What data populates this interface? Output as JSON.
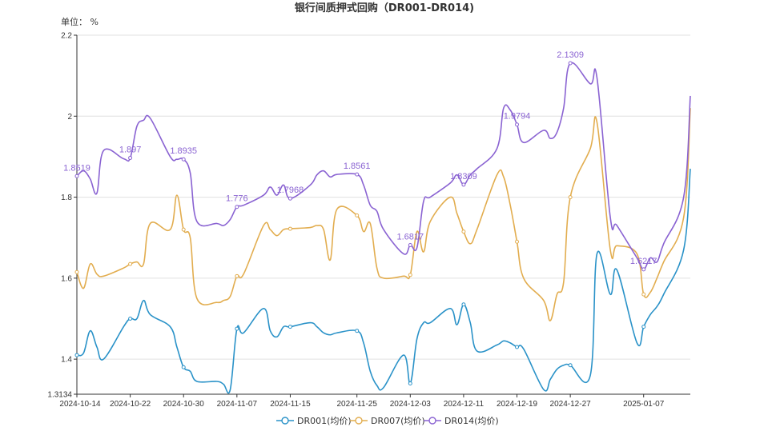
{
  "chart_data": {
    "type": "line",
    "title": "银行间质押式回购（DR001-DR014)",
    "unit_label": "单位： %",
    "ylim": [
      1.3134,
      2.2
    ],
    "y_ticks": [
      "2.2",
      "2",
      "1.8",
      "1.6",
      "1.4",
      "1.3134"
    ],
    "y_tick_values": [
      2.2,
      2.0,
      1.8,
      1.6,
      1.4,
      1.3134
    ],
    "xlim": [
      "2024-10-14",
      "2025-01-14"
    ],
    "x_ticks": [
      "2024-10-14",
      "2024-10-22",
      "2024-10-30",
      "2024-11-07",
      "2024-11-15",
      "2024-11-25",
      "2024-12-03",
      "2024-12-11",
      "2024-12-19",
      "2024-12-27",
      "2025-01-07"
    ],
    "x_tick_dates": [
      "2024-10-14",
      "2024-10-22",
      "2024-10-30",
      "2024-11-07",
      "2024-11-15",
      "2024-11-25",
      "2024-12-03",
      "2024-12-11",
      "2024-12-19",
      "2024-12-27",
      "2025-01-07"
    ],
    "grid": true,
    "legend_position": "bottom",
    "colors": {
      "DR001": "#2a92c8",
      "DR007": "#e2ad4f",
      "DR014": "#8a63d2"
    },
    "series": [
      {
        "name": "DR001(均价)",
        "key": "DR001",
        "x": [
          "2024-10-14",
          "2024-10-15",
          "2024-10-16",
          "2024-10-17",
          "2024-10-18",
          "2024-10-21",
          "2024-10-22",
          "2024-10-23",
          "2024-10-24",
          "2024-10-25",
          "2024-10-28",
          "2024-10-29",
          "2024-10-30",
          "2024-10-31",
          "2024-11-01",
          "2024-11-04",
          "2024-11-05",
          "2024-11-06",
          "2024-11-07",
          "2024-11-08",
          "2024-11-11",
          "2024-11-12",
          "2024-11-13",
          "2024-11-14",
          "2024-11-15",
          "2024-11-18",
          "2024-11-19",
          "2024-11-20",
          "2024-11-21",
          "2024-11-22",
          "2024-11-25",
          "2024-11-26",
          "2024-11-27",
          "2024-11-28",
          "2024-11-29",
          "2024-12-02",
          "2024-12-03",
          "2024-12-04",
          "2024-12-05",
          "2024-12-06",
          "2024-12-09",
          "2024-12-10",
          "2024-12-11",
          "2024-12-12",
          "2024-12-13",
          "2024-12-16",
          "2024-12-17",
          "2024-12-18",
          "2024-12-19",
          "2024-12-20",
          "2024-12-23",
          "2024-12-24",
          "2024-12-25",
          "2024-12-26",
          "2024-12-27",
          "2024-12-30",
          "2024-12-31",
          "2025-01-02",
          "2025-01-03",
          "2025-01-06",
          "2025-01-07",
          "2025-01-08",
          "2025-01-09",
          "2025-01-10",
          "2025-01-13",
          "2025-01-14"
        ],
        "values": [
          1.41,
          1.415,
          1.47,
          1.43,
          1.4,
          1.48,
          1.5,
          1.5,
          1.545,
          1.51,
          1.48,
          1.43,
          1.38,
          1.37,
          1.345,
          1.345,
          1.338,
          1.325,
          1.475,
          1.465,
          1.525,
          1.47,
          1.455,
          1.48,
          1.48,
          1.49,
          1.48,
          1.465,
          1.46,
          1.465,
          1.47,
          1.44,
          1.37,
          1.335,
          1.33,
          1.41,
          1.34,
          1.45,
          1.49,
          1.49,
          1.525,
          1.485,
          1.535,
          1.49,
          1.42,
          1.435,
          1.445,
          1.44,
          1.43,
          1.425,
          1.325,
          1.35,
          1.375,
          1.385,
          1.385,
          1.36,
          1.66,
          1.56,
          1.62,
          1.44,
          1.48,
          1.51,
          1.53,
          1.56,
          1.67,
          1.87
        ]
      },
      {
        "name": "DR007(均价)",
        "key": "DR007",
        "x": [
          "2024-10-14",
          "2024-10-15",
          "2024-10-16",
          "2024-10-17",
          "2024-10-18",
          "2024-10-21",
          "2024-10-22",
          "2024-10-23",
          "2024-10-24",
          "2024-10-25",
          "2024-10-28",
          "2024-10-29",
          "2024-10-30",
          "2024-10-31",
          "2024-11-01",
          "2024-11-04",
          "2024-11-05",
          "2024-11-06",
          "2024-11-07",
          "2024-11-08",
          "2024-11-11",
          "2024-11-12",
          "2024-11-13",
          "2024-11-14",
          "2024-11-15",
          "2024-11-18",
          "2024-11-19",
          "2024-11-20",
          "2024-11-21",
          "2024-11-22",
          "2024-11-25",
          "2024-11-26",
          "2024-11-27",
          "2024-11-28",
          "2024-11-29",
          "2024-12-02",
          "2024-12-03",
          "2024-12-04",
          "2024-12-05",
          "2024-12-06",
          "2024-12-09",
          "2024-12-10",
          "2024-12-11",
          "2024-12-12",
          "2024-12-13",
          "2024-12-16",
          "2024-12-17",
          "2024-12-18",
          "2024-12-19",
          "2024-12-20",
          "2024-12-23",
          "2024-12-24",
          "2024-12-25",
          "2024-12-26",
          "2024-12-27",
          "2024-12-30",
          "2024-12-31",
          "2025-01-02",
          "2025-01-03",
          "2025-01-06",
          "2025-01-07",
          "2025-01-08",
          "2025-01-09",
          "2025-01-10",
          "2025-01-13",
          "2025-01-14"
        ],
        "values": [
          1.615,
          1.575,
          1.635,
          1.61,
          1.605,
          1.625,
          1.635,
          1.64,
          1.635,
          1.735,
          1.72,
          1.805,
          1.72,
          1.7,
          1.55,
          1.54,
          1.545,
          1.555,
          1.605,
          1.61,
          1.73,
          1.72,
          1.705,
          1.72,
          1.722,
          1.725,
          1.73,
          1.72,
          1.645,
          1.77,
          1.755,
          1.715,
          1.735,
          1.625,
          1.6,
          1.605,
          1.608,
          1.715,
          1.665,
          1.74,
          1.8,
          1.76,
          1.715,
          1.685,
          1.72,
          1.855,
          1.85,
          1.78,
          1.69,
          1.6,
          1.545,
          1.495,
          1.56,
          1.59,
          1.8,
          1.92,
          1.985,
          1.67,
          1.68,
          1.66,
          1.56,
          1.565,
          1.6,
          1.64,
          1.75,
          2.02
        ]
      },
      {
        "name": "DR014(均价)",
        "key": "DR014",
        "x": [
          "2024-10-14",
          "2024-10-15",
          "2024-10-16",
          "2024-10-17",
          "2024-10-18",
          "2024-10-21",
          "2024-10-22",
          "2024-10-23",
          "2024-10-24",
          "2024-10-25",
          "2024-10-28",
          "2024-10-29",
          "2024-10-30",
          "2024-10-31",
          "2024-11-01",
          "2024-11-04",
          "2024-11-05",
          "2024-11-06",
          "2024-11-07",
          "2024-11-08",
          "2024-11-11",
          "2024-11-12",
          "2024-11-13",
          "2024-11-14",
          "2024-11-15",
          "2024-11-18",
          "2024-11-19",
          "2024-11-20",
          "2024-11-21",
          "2024-11-22",
          "2024-11-25",
          "2024-11-26",
          "2024-11-27",
          "2024-11-28",
          "2024-11-29",
          "2024-12-02",
          "2024-12-03",
          "2024-12-04",
          "2024-12-05",
          "2024-12-06",
          "2024-12-09",
          "2024-12-10",
          "2024-12-11",
          "2024-12-12",
          "2024-12-13",
          "2024-12-16",
          "2024-12-17",
          "2024-12-18",
          "2024-12-19",
          "2024-12-20",
          "2024-12-23",
          "2024-12-24",
          "2024-12-25",
          "2024-12-26",
          "2024-12-27",
          "2024-12-30",
          "2024-12-31",
          "2025-01-02",
          "2025-01-03",
          "2025-01-06",
          "2025-01-07",
          "2025-01-08",
          "2025-01-09",
          "2025-01-10",
          "2025-01-13",
          "2025-01-14"
        ],
        "values": [
          1.8519,
          1.865,
          1.845,
          1.81,
          1.915,
          1.895,
          1.897,
          1.975,
          1.99,
          1.995,
          1.9,
          1.8935,
          1.8935,
          1.86,
          1.74,
          1.735,
          1.73,
          1.745,
          1.776,
          1.78,
          1.805,
          1.825,
          1.805,
          1.83,
          1.7968,
          1.83,
          1.855,
          1.865,
          1.85,
          1.8561,
          1.8561,
          1.83,
          1.78,
          1.765,
          1.72,
          1.66,
          1.6817,
          1.675,
          1.79,
          1.8,
          1.835,
          1.855,
          1.8309,
          1.855,
          1.87,
          1.92,
          2.02,
          2.015,
          1.9794,
          1.935,
          1.965,
          1.945,
          1.96,
          2.02,
          2.1309,
          2.08,
          2.095,
          1.75,
          1.73,
          1.65,
          1.6217,
          1.65,
          1.64,
          1.685,
          1.8,
          2.05
        ]
      }
    ],
    "point_labels": [
      {
        "series": "DR014",
        "x": "2024-10-14",
        "value": 1.8519,
        "text": "1.8519"
      },
      {
        "series": "DR014",
        "x": "2024-10-22",
        "value": 1.897,
        "text": "1.897"
      },
      {
        "series": "DR014",
        "x": "2024-10-30",
        "value": 1.8935,
        "text": "1.8935"
      },
      {
        "series": "DR014",
        "x": "2024-11-07",
        "value": 1.776,
        "text": "1.776"
      },
      {
        "series": "DR014",
        "x": "2024-11-15",
        "value": 1.7968,
        "text": "1.7968"
      },
      {
        "series": "DR014",
        "x": "2024-11-25",
        "value": 1.8561,
        "text": "1.8561"
      },
      {
        "series": "DR014",
        "x": "2024-12-03",
        "value": 1.6817,
        "text": "1.6817"
      },
      {
        "series": "DR014",
        "x": "2024-12-11",
        "value": 1.8309,
        "text": "1.8309"
      },
      {
        "series": "DR014",
        "x": "2024-12-19",
        "value": 1.9794,
        "text": "1.9794"
      },
      {
        "series": "DR014",
        "x": "2024-12-27",
        "value": 2.1309,
        "text": "2.1309"
      },
      {
        "series": "DR014",
        "x": "2025-01-07",
        "value": 1.6217,
        "text": "1.6217"
      }
    ]
  }
}
